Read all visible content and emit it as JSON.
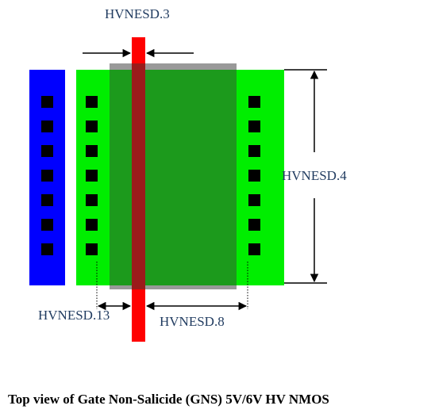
{
  "diagram": {
    "labels": {
      "rule_3": "HVNESD.3",
      "rule_4": "HVNESD.4",
      "rule_13": "HVNESD.13",
      "rule_8": "HVNESD.8"
    },
    "caption": "Top view of Gate Non-Salicide (GNS) 5V/6V HV NMOS"
  },
  "colors": {
    "pickup_blue": "#0000ff",
    "active_green": "#00ee00",
    "gns_gray": "#999999",
    "gns_green": "#1c9a1c",
    "poly_red": "#ff0000",
    "poly_overlap": "#9b1b1b",
    "contact_black": "#000000",
    "label_text": "#1f3a5f"
  },
  "contacts_per_column": 7
}
